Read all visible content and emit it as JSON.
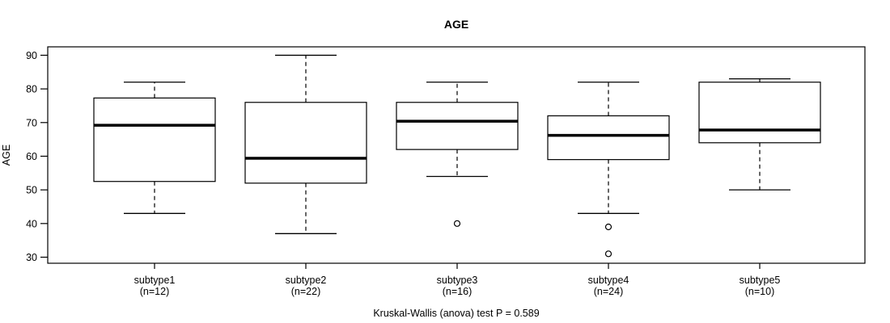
{
  "chart_data": {
    "type": "boxplot",
    "title": "AGE",
    "ylabel": "AGE",
    "xlabel": "",
    "caption": "Kruskal-Wallis (anova) test P = 0.589",
    "ylim": [
      28.2,
      92.5
    ],
    "yticks": [
      30,
      40,
      50,
      60,
      70,
      80,
      90
    ],
    "grid": false,
    "legend": "none",
    "groups": [
      {
        "label": "subtype1",
        "n_label": "(n=12)",
        "whisker_low": 43,
        "q1": 52.5,
        "median": 69.2,
        "q3": 77.3,
        "whisker_high": 82,
        "outliers": []
      },
      {
        "label": "subtype2",
        "n_label": "(n=22)",
        "whisker_low": 37,
        "q1": 52,
        "median": 59.4,
        "q3": 76,
        "whisker_high": 90,
        "outliers": []
      },
      {
        "label": "subtype3",
        "n_label": "(n=16)",
        "whisker_low": 54,
        "q1": 62,
        "median": 70.4,
        "q3": 76,
        "whisker_high": 82,
        "outliers": [
          40
        ]
      },
      {
        "label": "subtype4",
        "n_label": "(n=24)",
        "whisker_low": 43,
        "q1": 59,
        "median": 66.2,
        "q3": 72,
        "whisker_high": 82,
        "outliers": [
          39,
          31
        ]
      },
      {
        "label": "subtype5",
        "n_label": "(n=10)",
        "whisker_low": 50,
        "q1": 64,
        "median": 67.8,
        "q3": 82,
        "whisker_high": 83,
        "outliers": []
      }
    ],
    "colors": {
      "line": "#000000",
      "box_fill": "#ffffff",
      "background": "#ffffff"
    }
  }
}
